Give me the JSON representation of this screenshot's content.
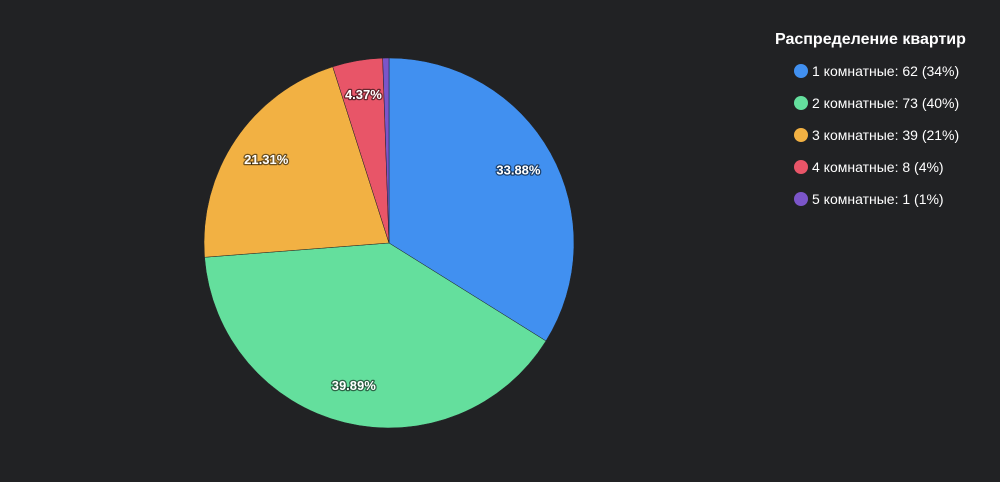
{
  "chart_data": {
    "type": "pie",
    "title": "Распределение квартир",
    "categories": [
      "1 комнатные",
      "2 комнатные",
      "3 комнатные",
      "4 комнатные",
      "5 комнатные"
    ],
    "values": [
      62,
      73,
      39,
      8,
      1
    ],
    "slice_labels": [
      "33.88%",
      "39.89%",
      "21.31%",
      "4.37%",
      ""
    ],
    "legend_labels": [
      "1 комнатные: 62 (34%)",
      "2 комнатные: 73 (40%)",
      "3 комнатные: 39 (21%)",
      "4 комнатные: 8 (4%)",
      "5 комнатные: 1 (1%)"
    ],
    "colors": [
      "#4190f0",
      "#64df9d",
      "#f2b143",
      "#e85568",
      "#7b55c9"
    ],
    "start_angle_deg": 0,
    "legend_position": "top-right",
    "background": "#212224"
  }
}
